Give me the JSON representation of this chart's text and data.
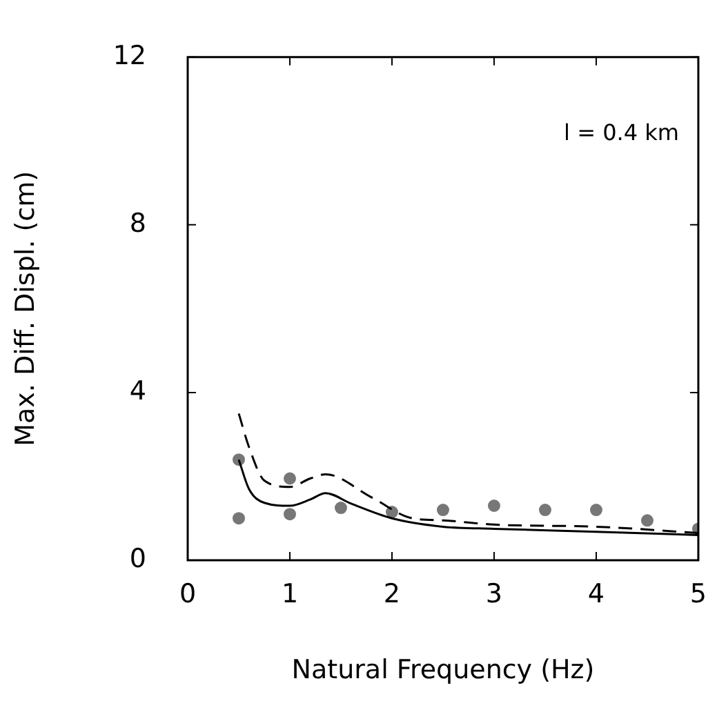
{
  "chart_data": {
    "type": "line",
    "xlabel": "Natural Frequency (Hz)",
    "ylabel": "Max. Diff. Displ. (cm)",
    "annotations": [
      "l = 0.4 km"
    ],
    "xlim": [
      0,
      5
    ],
    "xticks": [
      0,
      1,
      2,
      3,
      4,
      5
    ],
    "ylim": [
      0,
      12
    ],
    "yticks": [
      0,
      4,
      8,
      12
    ],
    "grid": false,
    "legend": false,
    "series": [
      {
        "color": "#000000",
        "line_style": "solid",
        "marker": "none",
        "x": [
          0.5,
          0.6,
          0.75,
          1.0,
          1.2,
          1.35,
          1.6,
          2.0,
          2.5,
          3.0,
          4.0,
          5.0
        ],
        "values": [
          2.4,
          1.7,
          1.37,
          1.3,
          1.45,
          1.6,
          1.35,
          1.0,
          0.8,
          0.75,
          0.68,
          0.6
        ]
      },
      {
        "color": "#000000",
        "line_style": "dashed",
        "marker": "none",
        "x": [
          0.5,
          0.6,
          0.75,
          1.0,
          1.2,
          1.35,
          1.8,
          2.2,
          2.5,
          3.0,
          4.0,
          5.0
        ],
        "values": [
          3.5,
          2.7,
          1.9,
          1.75,
          1.95,
          2.05,
          1.5,
          1.0,
          0.95,
          0.85,
          0.8,
          0.65
        ]
      },
      {
        "type": "scatter",
        "color": "#777777",
        "marker": "circle",
        "x": [
          0.5,
          0.5,
          1.0,
          1.0,
          1.5,
          2.0,
          2.5,
          3.0,
          3.5,
          4.0,
          4.5,
          5.0
        ],
        "values": [
          2.4,
          1.0,
          1.95,
          1.1,
          1.25,
          1.15,
          1.2,
          1.3,
          1.2,
          1.2,
          0.95,
          0.75
        ]
      }
    ]
  }
}
